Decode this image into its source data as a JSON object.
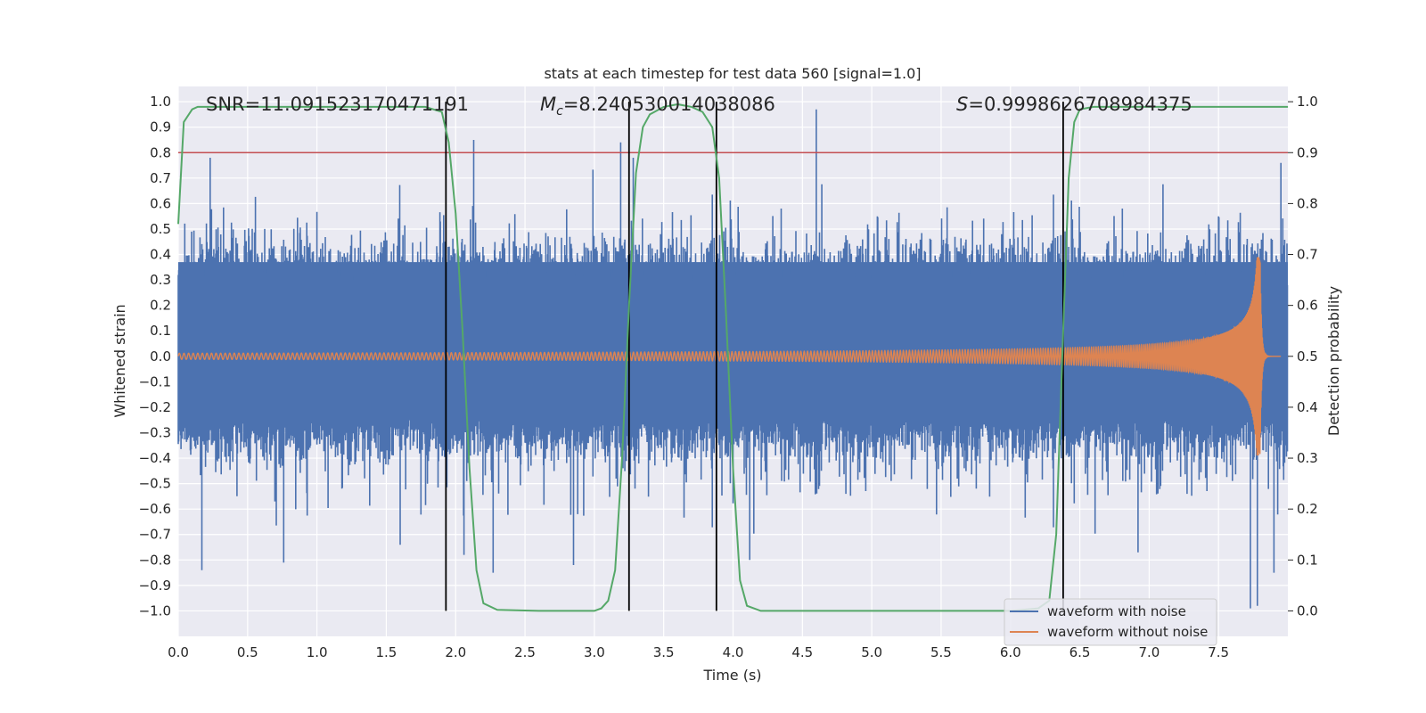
{
  "chart_data": {
    "type": "line",
    "title": "stats at each timestep for test data 560 [signal=1.0]",
    "xlabel": "Time (s)",
    "ylabel": "Whitened strain",
    "y2label": "Detection probability",
    "xlim": [
      0.0,
      8.0
    ],
    "ylim": [
      -1.1,
      1.06
    ],
    "y2lim": [
      -0.05,
      1.03
    ],
    "xticks": [
      "0.0",
      "0.5",
      "1.0",
      "1.5",
      "2.0",
      "2.5",
      "3.0",
      "3.5",
      "4.0",
      "4.5",
      "5.0",
      "5.5",
      "6.0",
      "6.5",
      "7.0",
      "7.5"
    ],
    "yticks": [
      "1.0",
      "0.9",
      "0.8",
      "0.7",
      "0.6",
      "0.5",
      "0.4",
      "0.3",
      "0.2",
      "0.1",
      "0.0",
      "-0.1",
      "-0.2",
      "-0.3",
      "-0.4",
      "-0.5",
      "-0.6",
      "-0.7",
      "-0.8",
      "-0.9",
      "-1.0"
    ],
    "y2ticks": [
      "1.0",
      "0.9",
      "0.8",
      "0.7",
      "0.6",
      "0.5",
      "0.4",
      "0.3",
      "0.2",
      "0.1",
      "0.0"
    ],
    "grid": true,
    "annotations": {
      "snr": "SNR=11.091523170471191",
      "mc_symbol": "M",
      "mc_sub": "c",
      "mc_value": "=8.240530014038086",
      "s_symbol": "S",
      "s_value": "=0.9998626708984375"
    },
    "threshold_line": {
      "value": 0.9,
      "axis": "y2",
      "color": "#c44e52"
    },
    "vertical_lines": [
      1.93,
      3.25,
      3.88,
      6.38
    ],
    "noisy_waveform": {
      "name": "waveform with noise",
      "color": "#4c72b0",
      "time_range": [
        0.0,
        8.0
      ],
      "rms_band": [
        -0.22,
        0.37
      ],
      "envelope_peaks": [
        {
          "t": 0.17,
          "y": -0.84
        },
        {
          "t": 0.23,
          "y": 0.78
        },
        {
          "t": 0.76,
          "y": -0.81
        },
        {
          "t": 1.6,
          "y": -0.74
        },
        {
          "t": 2.13,
          "y": 0.85
        },
        {
          "t": 2.06,
          "y": -0.78
        },
        {
          "t": 2.27,
          "y": -0.85
        },
        {
          "t": 2.85,
          "y": -0.82
        },
        {
          "t": 3.19,
          "y": 0.84
        },
        {
          "t": 3.28,
          "y": 0.78
        },
        {
          "t": 4.12,
          "y": -0.8
        },
        {
          "t": 4.6,
          "y": 0.97
        },
        {
          "t": 6.38,
          "y": -0.76
        },
        {
          "t": 6.92,
          "y": -0.77
        },
        {
          "t": 7.73,
          "y": -0.99
        },
        {
          "t": 7.78,
          "y": -0.98
        },
        {
          "t": 7.9,
          "y": -0.85
        },
        {
          "t": 7.95,
          "y": 0.76
        }
      ]
    },
    "clean_waveform": {
      "name": "waveform without noise",
      "color": "#dd8452",
      "chirp_start_hz": 30,
      "merger_time": 7.8,
      "amplitude_start": 0.012,
      "amplitude_peak": 0.39,
      "amplitude_trough": -0.27
    },
    "detection_probability": {
      "color": "#55a868",
      "points": [
        [
          0.0,
          0.76
        ],
        [
          0.04,
          0.96
        ],
        [
          0.1,
          0.985
        ],
        [
          0.14,
          0.99
        ],
        [
          0.5,
          0.99
        ],
        [
          1.0,
          0.99
        ],
        [
          1.5,
          0.99
        ],
        [
          1.78,
          0.99
        ],
        [
          1.9,
          0.98
        ],
        [
          1.95,
          0.92
        ],
        [
          2.0,
          0.78
        ],
        [
          2.05,
          0.55
        ],
        [
          2.1,
          0.28
        ],
        [
          2.15,
          0.08
        ],
        [
          2.2,
          0.015
        ],
        [
          2.3,
          0.002
        ],
        [
          2.6,
          0.0
        ],
        [
          3.0,
          0.0
        ],
        [
          3.05,
          0.005
        ],
        [
          3.1,
          0.02
        ],
        [
          3.15,
          0.08
        ],
        [
          3.2,
          0.3
        ],
        [
          3.25,
          0.6
        ],
        [
          3.3,
          0.86
        ],
        [
          3.35,
          0.95
        ],
        [
          3.4,
          0.975
        ],
        [
          3.5,
          0.99
        ],
        [
          3.6,
          0.995
        ],
        [
          3.7,
          0.99
        ],
        [
          3.78,
          0.98
        ],
        [
          3.85,
          0.95
        ],
        [
          3.9,
          0.85
        ],
        [
          3.95,
          0.58
        ],
        [
          4.0,
          0.28
        ],
        [
          4.05,
          0.06
        ],
        [
          4.1,
          0.01
        ],
        [
          4.2,
          0.0
        ],
        [
          5.0,
          0.0
        ],
        [
          6.0,
          0.0
        ],
        [
          6.2,
          0.005
        ],
        [
          6.28,
          0.02
        ],
        [
          6.33,
          0.15
        ],
        [
          6.38,
          0.55
        ],
        [
          6.42,
          0.85
        ],
        [
          6.46,
          0.96
        ],
        [
          6.5,
          0.985
        ],
        [
          6.6,
          0.99
        ],
        [
          7.0,
          0.99
        ],
        [
          7.5,
          0.99
        ],
        [
          8.0,
          0.99
        ]
      ]
    },
    "legend": {
      "placement": "lower-right",
      "entries": [
        "waveform with noise",
        "waveform without noise"
      ]
    }
  }
}
